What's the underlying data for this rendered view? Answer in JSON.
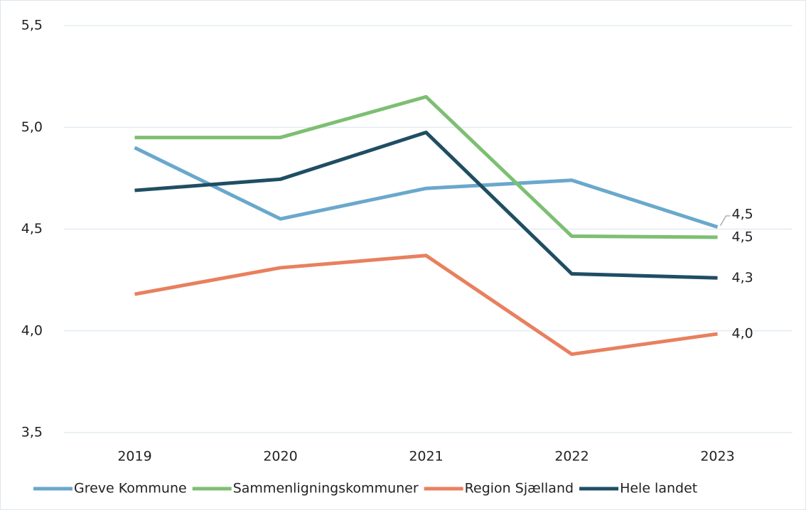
{
  "chart_data": {
    "type": "line",
    "categories": [
      "2019",
      "2020",
      "2021",
      "2022",
      "2023"
    ],
    "series": [
      {
        "name": "Greve Kommune",
        "color": "#6aa8cc",
        "values": [
          4.9,
          4.55,
          4.7,
          4.74,
          4.51
        ],
        "value_labels": [
          null,
          null,
          null,
          null,
          "4,5"
        ]
      },
      {
        "name": "Sammenligningskommuner",
        "color": "#7dbf72",
        "values": [
          4.95,
          4.95,
          5.15,
          4.465,
          4.46
        ],
        "value_labels": [
          null,
          null,
          null,
          null,
          "4,5"
        ]
      },
      {
        "name": "Region Sjælland",
        "color": "#e8805e",
        "values": [
          4.18,
          4.31,
          4.37,
          3.885,
          3.985
        ],
        "value_labels": [
          null,
          null,
          null,
          null,
          "4,0"
        ]
      },
      {
        "name": "Hele landet",
        "color": "#1f4e63",
        "values": [
          4.69,
          4.745,
          4.975,
          4.28,
          4.26
        ],
        "value_labels": [
          null,
          null,
          null,
          null,
          "4,3"
        ]
      }
    ],
    "ylim": [
      3.5,
      5.5
    ],
    "yticks": [
      {
        "value": 3.5,
        "label": "3,5"
      },
      {
        "value": 4.0,
        "label": "4,0"
      },
      {
        "value": 4.5,
        "label": "4,5"
      },
      {
        "value": 5.0,
        "label": "5,0"
      },
      {
        "value": 5.5,
        "label": "5,5"
      }
    ],
    "grid": true,
    "legend": "bottom"
  }
}
